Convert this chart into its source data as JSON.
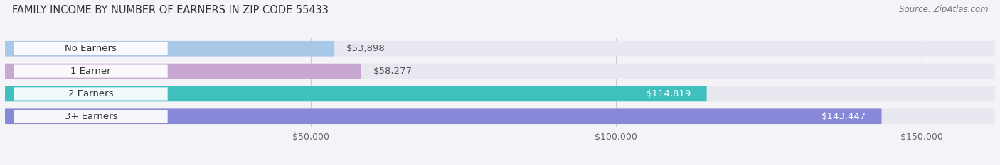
{
  "title": "FAMILY INCOME BY NUMBER OF EARNERS IN ZIP CODE 55433",
  "source": "Source: ZipAtlas.com",
  "categories": [
    "No Earners",
    "1 Earner",
    "2 Earners",
    "3+ Earners"
  ],
  "values": [
    53898,
    58277,
    114819,
    143447
  ],
  "bar_colors": [
    "#a8c8e8",
    "#c8a8d0",
    "#40bfbf",
    "#8888d8"
  ],
  "label_colors": [
    "#555555",
    "#555555",
    "#ffffff",
    "#ffffff"
  ],
  "bar_bg_color": "#e2e2ec",
  "tick_labels": [
    "$50,000",
    "$100,000",
    "$150,000"
  ],
  "tick_values": [
    50000,
    100000,
    150000
  ],
  "xlim": [
    0,
    162000
  ],
  "figsize": [
    14.06,
    2.33
  ],
  "dpi": 100,
  "title_fontsize": 10.5,
  "source_fontsize": 8.5,
  "bar_label_fontsize": 9.5,
  "category_fontsize": 9.5,
  "tick_fontsize": 9,
  "bar_height": 0.68,
  "background_color": "#f4f4f8",
  "bar_bg_color2": "#e8e8f0",
  "pill_white": "#ffffff",
  "pill_label_color": "#333333",
  "grid_color": "#cccccc"
}
